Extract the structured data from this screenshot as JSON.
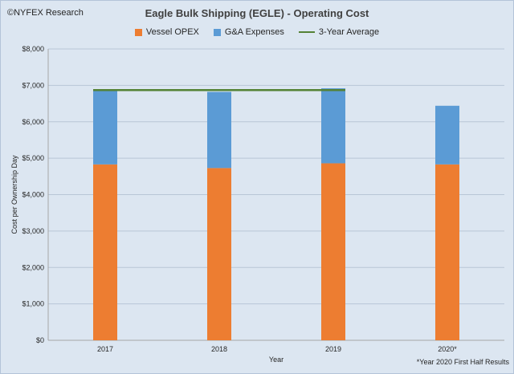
{
  "watermark": "©NYFEX Research",
  "chart_data": {
    "type": "bar",
    "stacked": true,
    "title": "Eagle Bulk Shipping (EGLE) - Operating Cost",
    "xlabel": "Year",
    "ylabel": "Cost per Ownership Day",
    "categories": [
      "2017",
      "2018",
      "2019",
      "2020*"
    ],
    "series": [
      {
        "name": "Vessel OPEX",
        "values": [
          4830,
          4730,
          4860,
          4830
        ],
        "color": "#ed7d31"
      },
      {
        "name": "G&A Expenses",
        "values": [
          2020,
          2090,
          2060,
          1610
        ],
        "color": "#5b9bd5"
      }
    ],
    "average_line": {
      "name": "3-Year Average",
      "value": 6870,
      "span": [
        "2017",
        "2019"
      ],
      "color": "#548235"
    },
    "ylim": [
      0,
      8000
    ],
    "yticks": [
      "$0",
      "$1,000",
      "$2,000",
      "$3,000",
      "$4,000",
      "$5,000",
      "$6,000",
      "$7,000",
      "$8,000"
    ],
    "grid": true,
    "legend_position": "top",
    "footnote": "*Year 2020 First Half Results"
  }
}
